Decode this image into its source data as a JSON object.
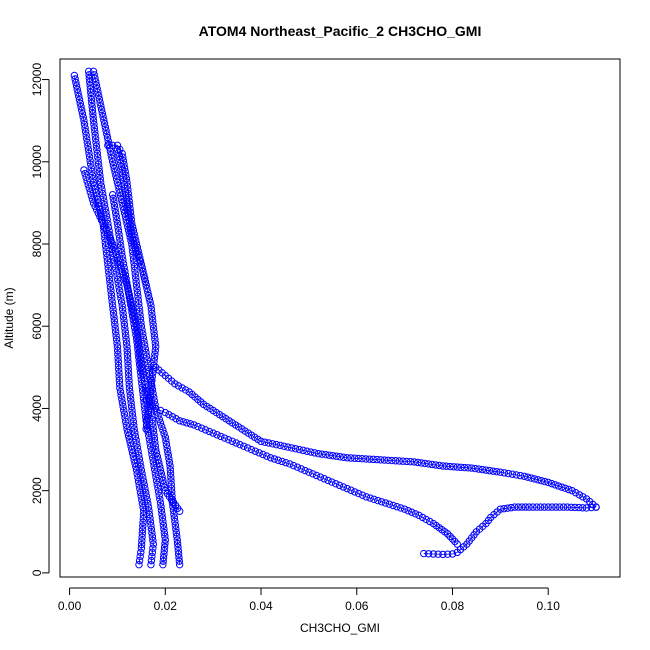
{
  "chart_data": {
    "type": "scatter",
    "title": "ATOM4 Northeast_Pacific_2 CH3CHO_GMI",
    "xlabel": "CH3CHO_GMI",
    "ylabel": "Altitude (m)",
    "xlim": [
      -0.002,
      0.115
    ],
    "ylim": [
      -100,
      12500
    ],
    "xticks": [
      0.0,
      0.02,
      0.04,
      0.06,
      0.08,
      0.1
    ],
    "xtick_labels": [
      "0.00",
      "0.02",
      "0.04",
      "0.06",
      "0.08",
      "0.10"
    ],
    "yticks": [
      0,
      2000,
      4000,
      6000,
      8000,
      10000,
      12000
    ],
    "ytick_labels": [
      "0",
      "2000",
      "4000",
      "6000",
      "8000",
      "10000",
      "12000"
    ],
    "grid": false,
    "legend": "none",
    "marker": "open-circle",
    "color": "#0000ff",
    "series": [
      {
        "x": [
          0.0145,
          0.015,
          0.0155,
          0.014,
          0.012,
          0.0105,
          0.01,
          0.009,
          0.008,
          0.007,
          0.005,
          0.003,
          0.001
        ],
        "y": [
          200,
          600,
          1500,
          2500,
          3500,
          4500,
          5500,
          6500,
          7500,
          8500,
          9500,
          11000,
          12100
        ]
      },
      {
        "x": [
          0.017,
          0.0175,
          0.0165,
          0.015,
          0.0135,
          0.0125,
          0.012,
          0.011,
          0.0095,
          0.008,
          0.0065,
          0.005,
          0.004
        ],
        "y": [
          200,
          700,
          1600,
          2500,
          3500,
          4500,
          5500,
          6500,
          7500,
          8500,
          9500,
          11000,
          12200
        ]
      },
      {
        "x": [
          0.0195,
          0.02,
          0.019,
          0.0175,
          0.016,
          0.015,
          0.014,
          0.0125,
          0.011,
          0.01,
          0.009
        ],
        "y": [
          200,
          800,
          1700,
          2700,
          3700,
          4700,
          5700,
          6700,
          7700,
          8500,
          9200
        ]
      },
      {
        "x": [
          0.023,
          0.0225,
          0.0215,
          0.021,
          0.02,
          0.018,
          0.0165,
          0.015,
          0.014,
          0.013,
          0.011,
          0.009,
          0.005
        ],
        "y": [
          200,
          800,
          1700,
          2600,
          3300,
          4000,
          5000,
          6000,
          7000,
          8000,
          9000,
          10000,
          12200
        ]
      },
      {
        "x": [
          0.003,
          0.005,
          0.007,
          0.009,
          0.012,
          0.014,
          0.015,
          0.016,
          0.017,
          0.018,
          0.02,
          0.023
        ],
        "y": [
          9800,
          9000,
          8500,
          8000,
          7000,
          6000,
          5000,
          4500,
          4000,
          3000,
          2000,
          1500
        ]
      },
      {
        "x": [
          0.008,
          0.01,
          0.011,
          0.012,
          0.013,
          0.015,
          0.017,
          0.018,
          0.017,
          0.016
        ],
        "y": [
          10400,
          10400,
          10200,
          9500,
          8500,
          7500,
          6500,
          5500,
          4500,
          3500
        ]
      },
      {
        "x": [
          0.01,
          0.011,
          0.012,
          0.013,
          0.014,
          0.015,
          0.016
        ],
        "y": [
          10300,
          9800,
          9000,
          8200,
          7800,
          7500,
          7000
        ]
      },
      {
        "x": [
          0.018,
          0.02,
          0.022,
          0.025,
          0.028,
          0.032,
          0.036,
          0.04,
          0.044,
          0.048,
          0.052,
          0.058,
          0.065,
          0.072,
          0.078,
          0.084,
          0.09,
          0.095,
          0.1,
          0.105,
          0.108,
          0.11
        ],
        "y": [
          5000,
          4800,
          4600,
          4400,
          4100,
          3800,
          3500,
          3200,
          3100,
          3000,
          2900,
          2800,
          2750,
          2700,
          2600,
          2550,
          2450,
          2350,
          2200,
          2000,
          1800,
          1600
        ]
      },
      {
        "x": [
          0.016,
          0.018,
          0.02,
          0.023,
          0.026,
          0.03,
          0.034,
          0.038,
          0.042,
          0.046,
          0.05,
          0.054,
          0.058,
          0.062,
          0.066,
          0.07,
          0.073,
          0.076,
          0.079,
          0.081
        ],
        "y": [
          4200,
          4000,
          3900,
          3700,
          3600,
          3400,
          3200,
          3000,
          2800,
          2650,
          2450,
          2250,
          2050,
          1850,
          1700,
          1550,
          1400,
          1200,
          950,
          700
        ]
      },
      {
        "x": [
          0.074,
          0.076,
          0.078,
          0.08,
          0.081,
          0.083,
          0.085,
          0.087,
          0.088,
          0.09,
          0.093,
          0.096,
          0.1,
          0.104,
          0.108,
          0.11
        ],
        "y": [
          470,
          460,
          450,
          460,
          500,
          700,
          1000,
          1200,
          1350,
          1550,
          1600,
          1600,
          1600,
          1600,
          1580,
          1600
        ]
      }
    ]
  }
}
